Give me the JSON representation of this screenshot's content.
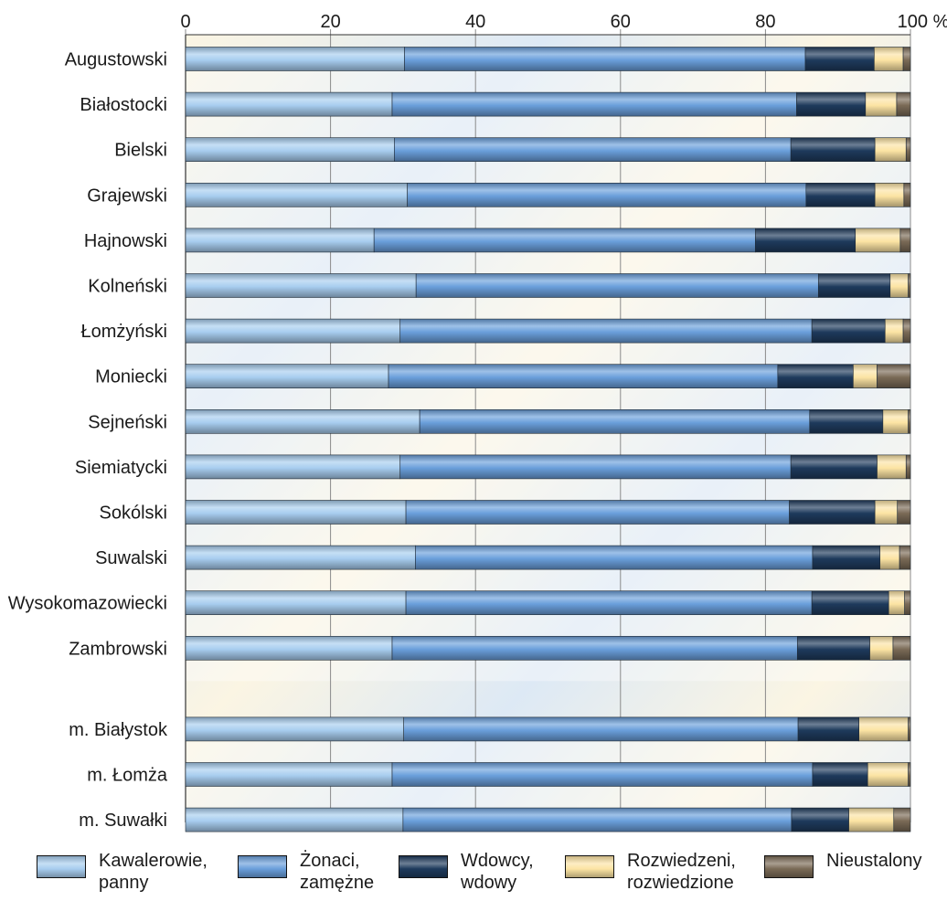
{
  "chart_data": {
    "type": "bar",
    "orientation": "horizontal",
    "stacked": true,
    "normalized_percent": true,
    "xlim": [
      0,
      100
    ],
    "x_ticks": [
      "0",
      "20",
      "40",
      "60",
      "80",
      "100 %"
    ],
    "x_tick_values": [
      0,
      20,
      40,
      60,
      80,
      100
    ],
    "x_axis_position": "top",
    "grid": true,
    "legend_position": "bottom",
    "categories": [
      "Augustowski",
      "Białostocki",
      "Bielski",
      "Grajewski",
      "Hajnowski",
      "Kolneński",
      "Łomżyński",
      "Moniecki",
      "Sejneński",
      "Siemiatycki",
      "Sokólski",
      "Suwalski",
      "Wysokomazowiecki",
      "Zambrowski",
      "m. Białystok",
      "m. Łomża",
      "m. Suwałki"
    ],
    "series": [
      {
        "name": "Kawalerowie,\npanny",
        "color": "#a8cdef",
        "values": [
          30.2,
          28.5,
          28.8,
          30.6,
          26.0,
          31.8,
          29.6,
          28.0,
          32.3,
          29.6,
          30.4,
          31.7,
          30.4,
          28.5,
          30.1,
          28.5,
          30.0
        ]
      },
      {
        "name": "Żonaci,\nzamężne",
        "color": "#6a9fdb",
        "values": [
          55.3,
          55.8,
          54.7,
          55.0,
          52.6,
          55.5,
          56.8,
          53.7,
          53.8,
          53.9,
          52.9,
          54.8,
          56.0,
          55.9,
          54.4,
          58.0,
          53.6
        ]
      },
      {
        "name": "Wdowcy,\nwdowy",
        "color": "#1e3a5c",
        "values": [
          9.5,
          9.5,
          11.6,
          9.5,
          13.8,
          9.9,
          10.1,
          10.4,
          10.1,
          11.9,
          11.8,
          9.3,
          10.6,
          10.0,
          8.4,
          7.6,
          7.9
        ]
      },
      {
        "name": "Rozwiedzeni,\nrozwiedzione",
        "color": "#fce4a4",
        "values": [
          4.0,
          4.3,
          4.3,
          4.0,
          6.2,
          2.5,
          2.5,
          3.3,
          3.5,
          4.0,
          3.1,
          2.7,
          2.2,
          3.2,
          6.8,
          5.6,
          6.2
        ]
      },
      {
        "name": "Nieustalony",
        "color": "#7a6a56",
        "values": [
          1.0,
          1.9,
          0.6,
          0.9,
          1.4,
          0.3,
          1.0,
          4.6,
          0.3,
          0.6,
          1.8,
          1.5,
          0.8,
          2.4,
          0.3,
          0.3,
          2.3
        ]
      }
    ]
  }
}
